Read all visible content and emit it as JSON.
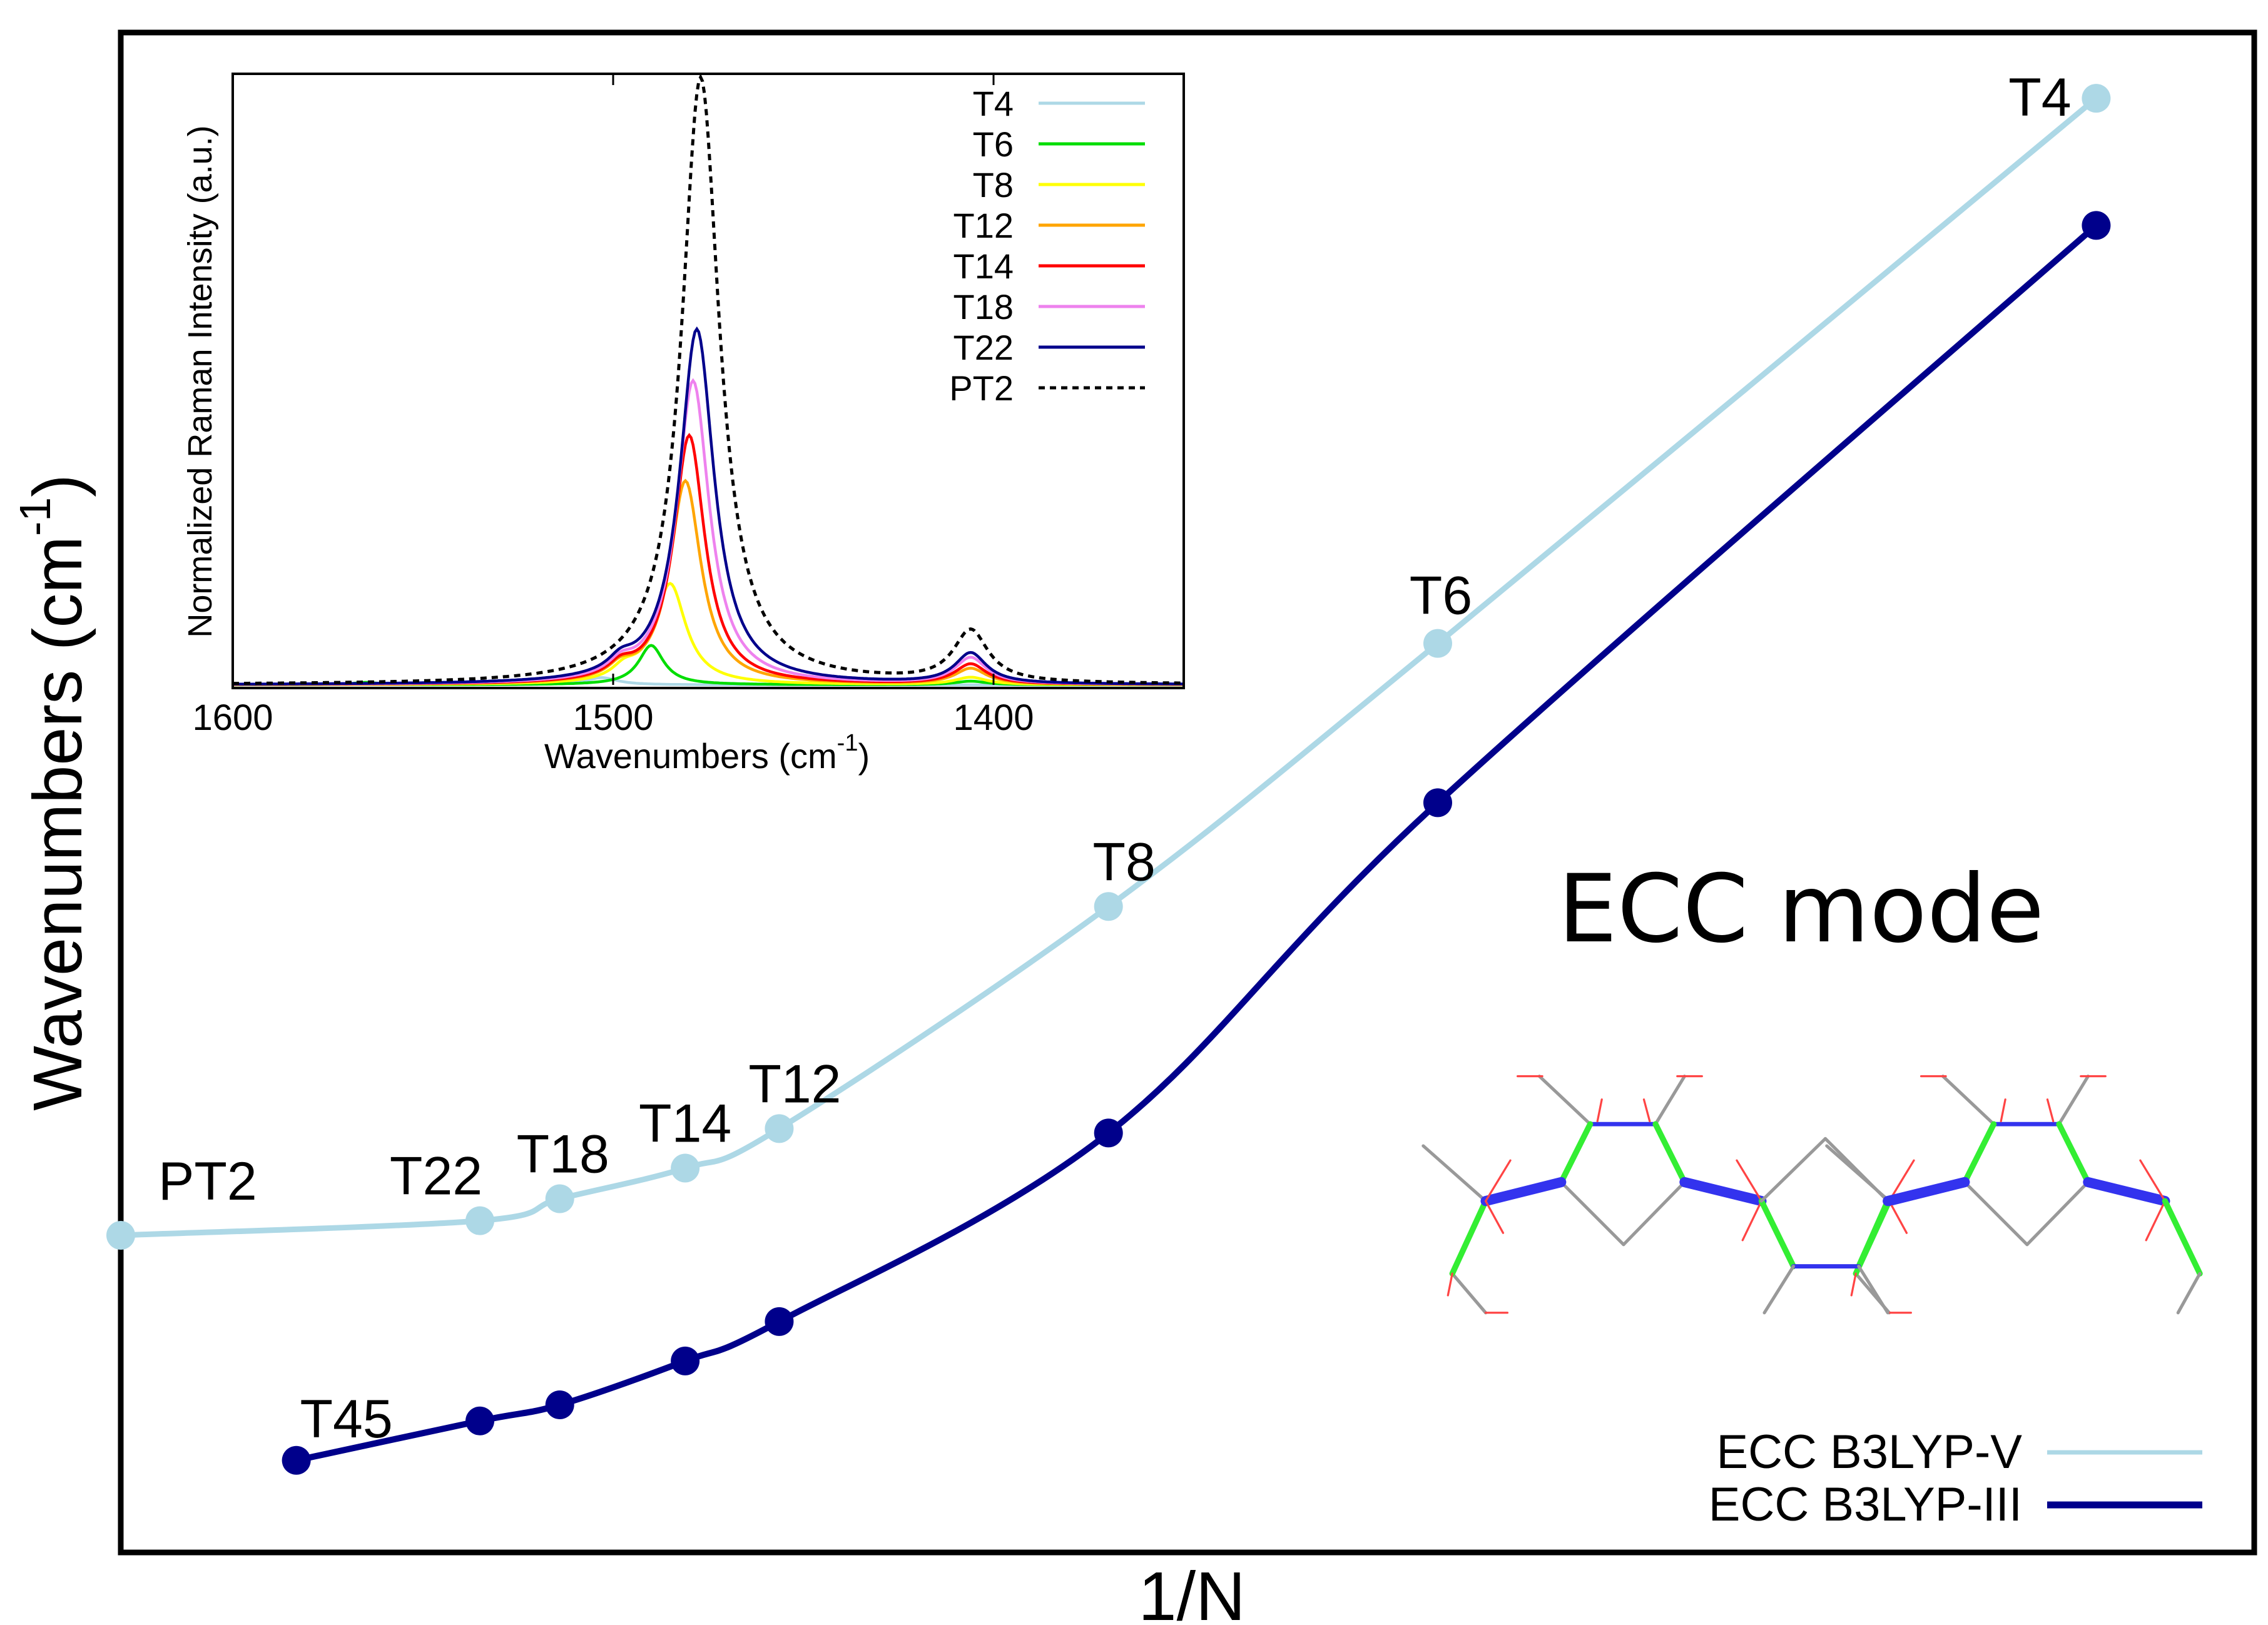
{
  "chart_data": [
    {
      "id": "main",
      "type": "line",
      "title": "",
      "xlabel": "1/N",
      "ylabel": "Wavenumbers (cm",
      "ylabel_sup": "-1",
      "ylabel_close": ")",
      "xlim": [
        0,
        0.27
      ],
      "ylim": [
        0,
        104
      ],
      "y_units_note": "relative (no tick labels shown)",
      "grid": false,
      "legend_position": "bottom-right",
      "annotation": "ECC mode",
      "series": [
        {
          "name": "ECC B3LYP-V",
          "color": "#add8e6",
          "points": [
            {
              "label": "PT2",
              "x": 0.0,
              "y": 21.7
            },
            {
              "label": "T22",
              "x": 0.04545,
              "y": 22.7
            },
            {
              "label": "T18",
              "x": 0.05556,
              "y": 24.2
            },
            {
              "label": "T14",
              "x": 0.07143,
              "y": 26.3
            },
            {
              "label": "T12",
              "x": 0.08333,
              "y": 29.0
            },
            {
              "label": "T8",
              "x": 0.125,
              "y": 44.2
            },
            {
              "label": "T6",
              "x": 0.16667,
              "y": 62.2
            },
            {
              "label": "T4",
              "x": 0.25,
              "y": 99.5
            }
          ]
        },
        {
          "name": "ECC B3LYP-III",
          "color": "#00008b",
          "points": [
            {
              "label": "T45",
              "x": 0.02222,
              "y": 6.3
            },
            {
              "label": "T22",
              "x": 0.04545,
              "y": 9.0
            },
            {
              "label": "T18",
              "x": 0.05556,
              "y": 10.1
            },
            {
              "label": "T14",
              "x": 0.07143,
              "y": 13.1
            },
            {
              "label": "T12",
              "x": 0.08333,
              "y": 15.8
            },
            {
              "label": "T8",
              "x": 0.125,
              "y": 28.7
            },
            {
              "label": "T6",
              "x": 0.16667,
              "y": 51.3
            },
            {
              "label": "T4",
              "x": 0.25,
              "y": 90.8
            }
          ]
        }
      ],
      "point_labels": [
        {
          "text": "PT2",
          "series": 0,
          "index": 0
        },
        {
          "text": "T22",
          "series": 0,
          "index": 1
        },
        {
          "text": "T18",
          "series": 0,
          "index": 2
        },
        {
          "text": "T14",
          "series": 0,
          "index": 3
        },
        {
          "text": "T12",
          "series": 0,
          "index": 4
        },
        {
          "text": "T8",
          "series": 0,
          "index": 5
        },
        {
          "text": "T6",
          "series": 0,
          "index": 6
        },
        {
          "text": "T4",
          "series": 0,
          "index": 7
        },
        {
          "text": "T45",
          "series": 1,
          "index": 0
        }
      ]
    },
    {
      "id": "inset",
      "type": "line",
      "title": "",
      "xlabel": "Wavenumbers (cm",
      "xlabel_sup": "-1",
      "xlabel_close": ")",
      "ylabel": "Normalized Raman Intensity (a.u.)",
      "xlim": [
        1600,
        1350
      ],
      "x_reversed": true,
      "xticks": [
        1600,
        1500,
        1400
      ],
      "ylim": [
        0,
        1.0
      ],
      "grid": false,
      "legend_position": "top-right",
      "series": [
        {
          "name": "T4",
          "color": "#add8e6",
          "dash": false,
          "peaks": [
            {
              "x": 1503,
              "h": 0.012,
              "w": 5
            }
          ]
        },
        {
          "name": "T6",
          "color": "#00dd00",
          "dash": false,
          "peaks": [
            {
              "x": 1490,
              "h": 0.065,
              "w": 4
            },
            {
              "x": 1565,
              "h": 0.004,
              "w": 4
            },
            {
              "x": 1406,
              "h": 0.006,
              "w": 5
            }
          ]
        },
        {
          "name": "T8",
          "color": "#ffff00",
          "dash": false,
          "peaks": [
            {
              "x": 1485,
              "h": 0.165,
              "w": 5
            },
            {
              "x": 1497,
              "h": 0.02,
              "w": 4
            },
            {
              "x": 1406,
              "h": 0.012,
              "w": 5
            }
          ]
        },
        {
          "name": "T12",
          "color": "#ffa500",
          "dash": false,
          "peaks": [
            {
              "x": 1481,
              "h": 0.335,
              "w": 5
            },
            {
              "x": 1498,
              "h": 0.02,
              "w": 4
            },
            {
              "x": 1406,
              "h": 0.026,
              "w": 5
            }
          ]
        },
        {
          "name": "T14",
          "color": "#ff0000",
          "dash": false,
          "peaks": [
            {
              "x": 1480,
              "h": 0.41,
              "w": 5
            },
            {
              "x": 1498,
              "h": 0.02,
              "w": 4
            },
            {
              "x": 1406,
              "h": 0.033,
              "w": 5
            }
          ]
        },
        {
          "name": "T18",
          "color": "#ee82ee",
          "dash": false,
          "peaks": [
            {
              "x": 1479,
              "h": 0.5,
              "w": 5.2
            },
            {
              "x": 1498,
              "h": 0.02,
              "w": 4
            },
            {
              "x": 1406,
              "h": 0.043,
              "w": 5
            }
          ]
        },
        {
          "name": "T22",
          "color": "#00008b",
          "dash": false,
          "peaks": [
            {
              "x": 1478,
              "h": 0.585,
              "w": 5.5
            },
            {
              "x": 1498,
              "h": 0.02,
              "w": 4
            },
            {
              "x": 1406,
              "h": 0.05,
              "w": 5
            }
          ]
        },
        {
          "name": "PT2",
          "color": "#000000",
          "dash": true,
          "peaks": [
            {
              "x": 1477,
              "h": 1.0,
              "w": 6
            },
            {
              "x": 1406,
              "h": 0.085,
              "w": 5.5
            }
          ]
        }
      ]
    }
  ]
}
